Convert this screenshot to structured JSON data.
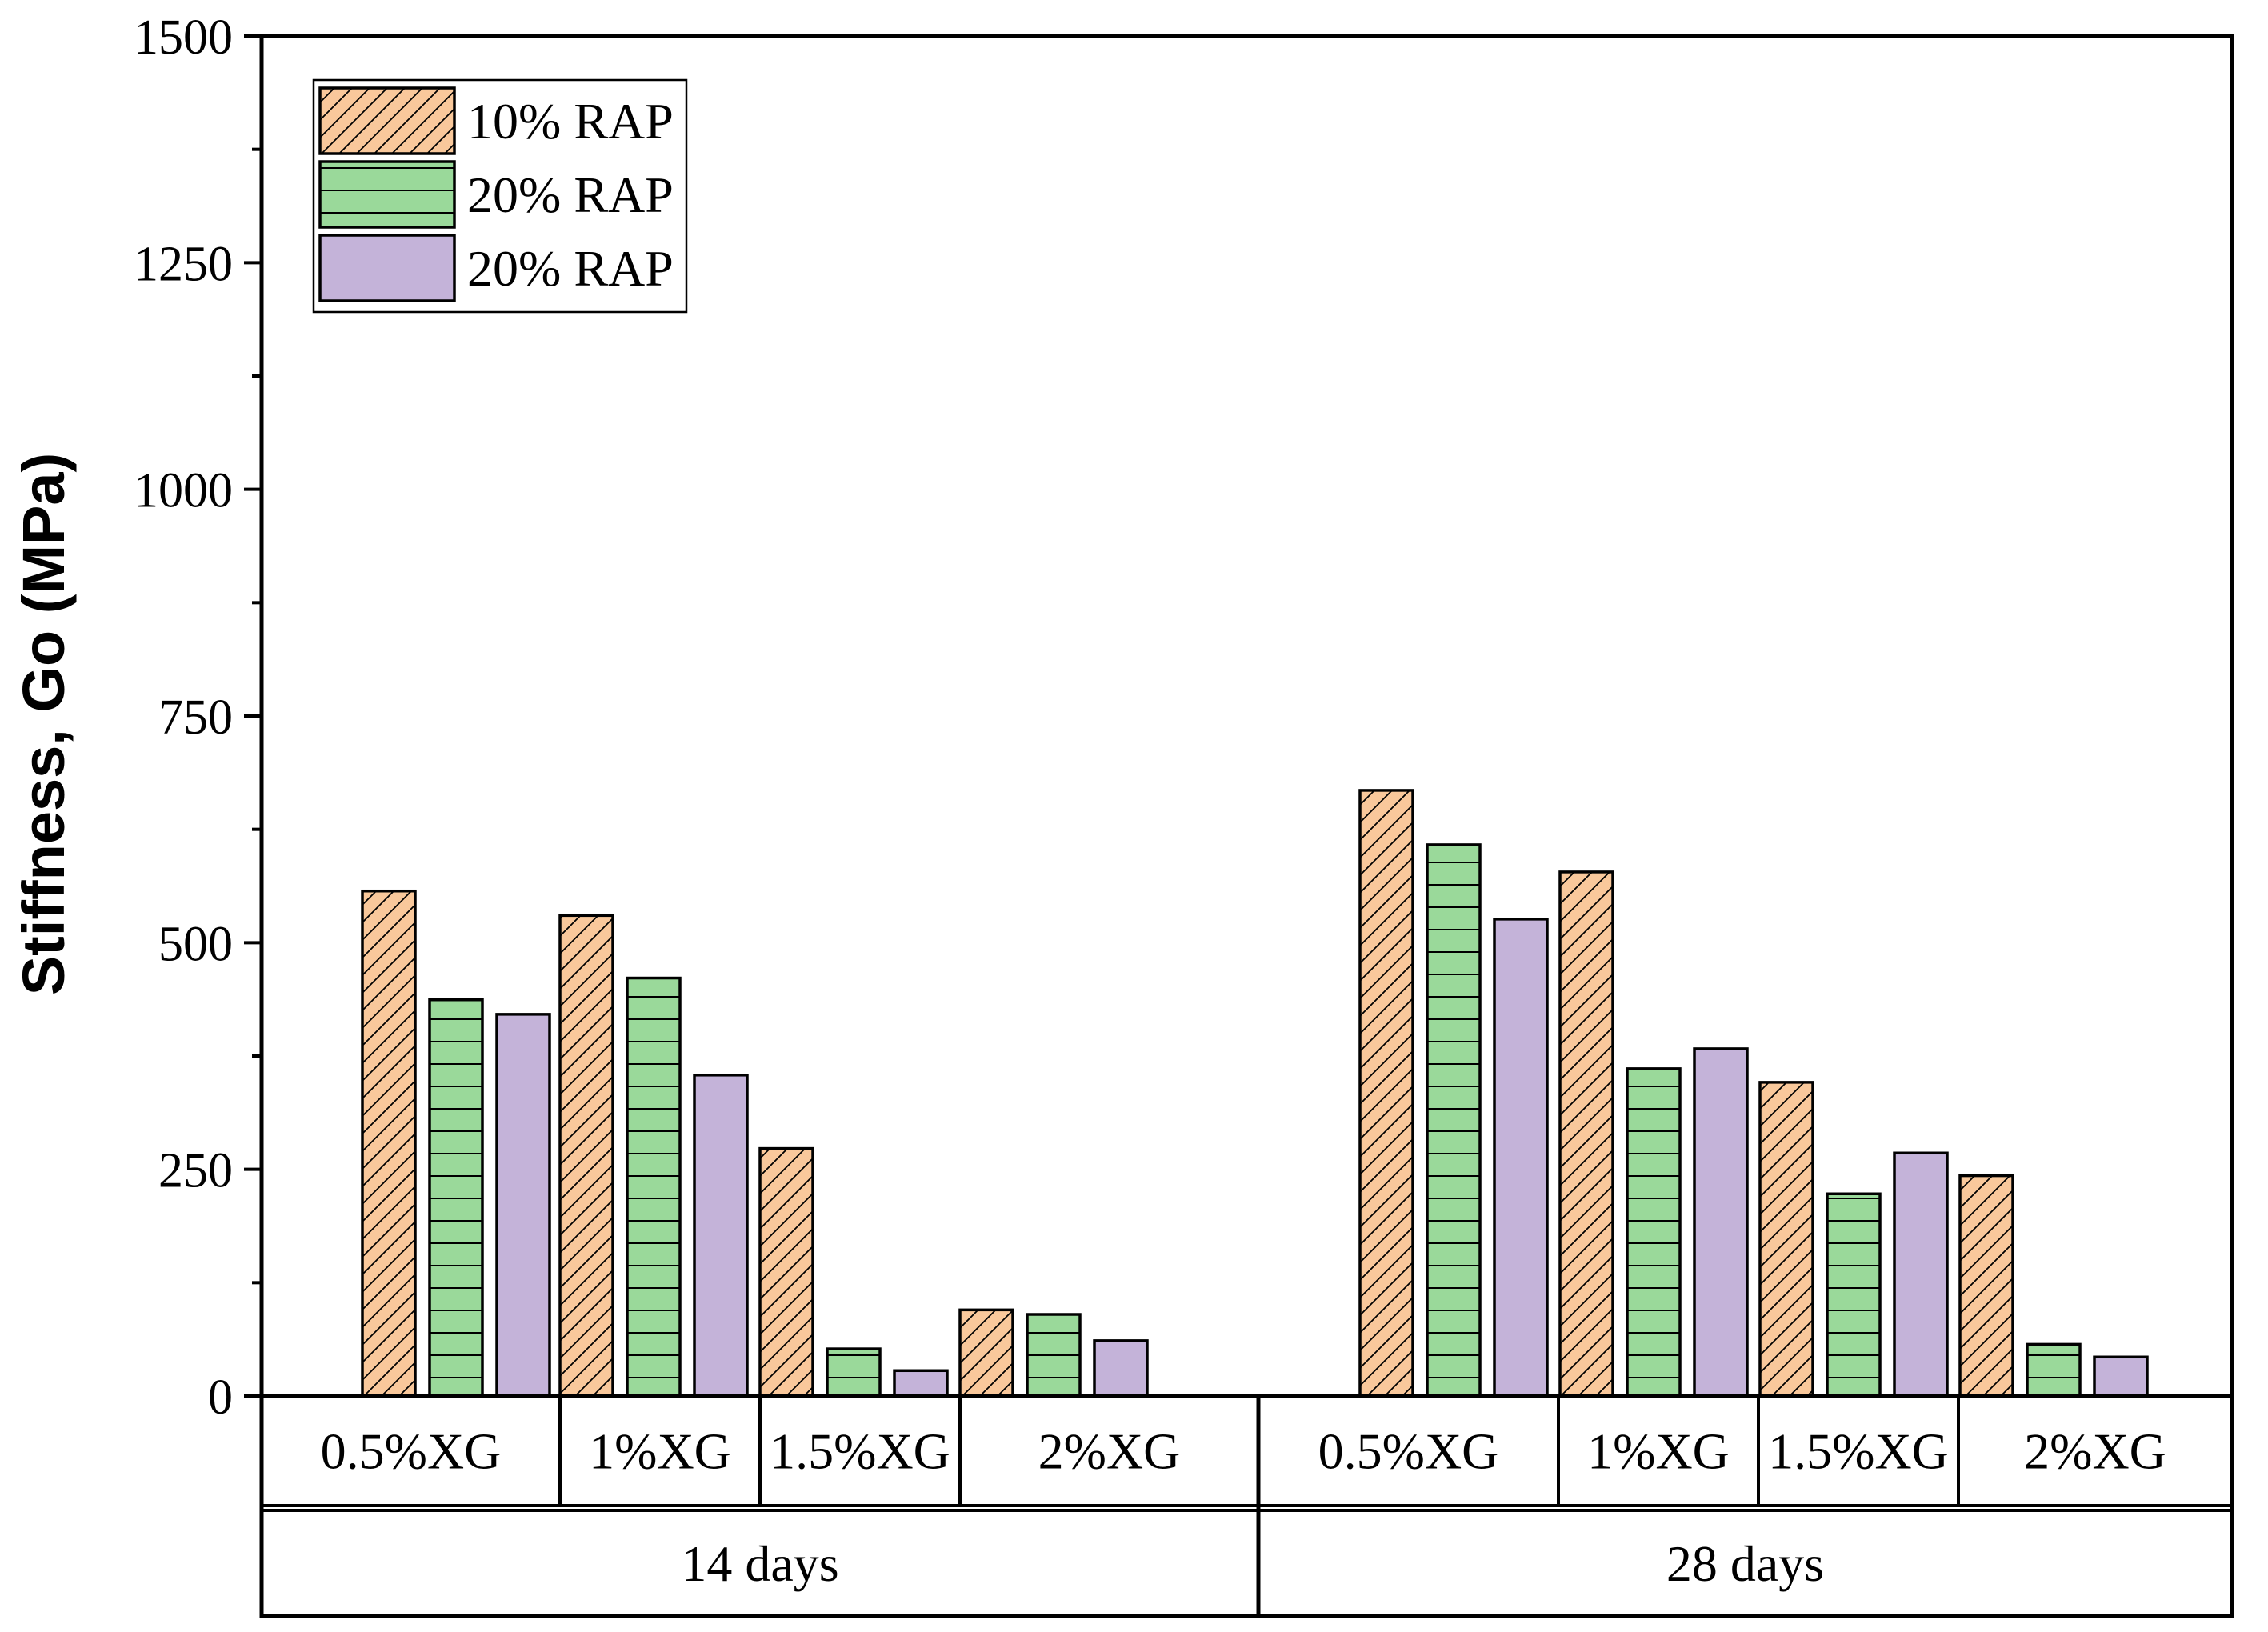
{
  "chart_data": {
    "type": "bar",
    "title": "",
    "xlabel": "",
    "ylabel": "Stiffness, Go (MPa)",
    "ylim": [
      0,
      1500
    ],
    "yticks": [
      0,
      250,
      500,
      750,
      1000,
      1250,
      1500
    ],
    "y_tick_labels": [
      "0",
      "250",
      "500",
      "750",
      "1000",
      "1250",
      "1500"
    ],
    "grid": false,
    "legend_position": "top-left",
    "groups": [
      {
        "label": "14 days",
        "categories": [
          "0.5%XG",
          "1%XG",
          "1.5%XG",
          "2%XG"
        ]
      },
      {
        "label": "28 days",
        "categories": [
          "0.5%XG",
          "1%XG",
          "1.5%XG",
          "2%XG"
        ]
      }
    ],
    "series": [
      {
        "name": "10% RAP",
        "color": "#f9c89b",
        "pattern": "diagonal",
        "values": [
          557,
          530,
          273,
          95,
          668,
          578,
          346,
          243
        ]
      },
      {
        "name": "20% RAP",
        "color": "#9ad99a",
        "pattern": "horizontal",
        "values": [
          437,
          461,
          52,
          90,
          608,
          361,
          223,
          57
        ]
      },
      {
        "name": "20% RAP",
        "color": "#c4b3d9",
        "pattern": "none",
        "values": [
          421,
          354,
          28,
          61,
          526,
          383,
          268,
          43
        ]
      }
    ]
  }
}
